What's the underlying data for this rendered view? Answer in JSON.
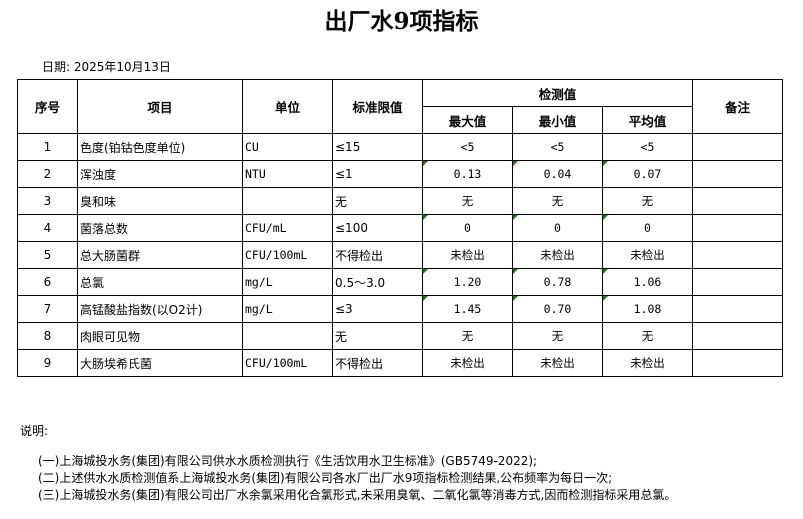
{
  "title": "出厂水9项指标",
  "date_label": "日期: 2025年10月13日",
  "headers": {
    "seq": "序号",
    "item": "项目",
    "unit": "单位",
    "limit": "标准限值",
    "measured": "检测值",
    "max": "最大值",
    "min": "最小值",
    "avg": "平均值",
    "remark": "备注"
  },
  "rows": [
    {
      "seq": "1",
      "item": "色度(铂钴色度单位)",
      "unit": "CU",
      "limit": "≤15",
      "max": "<5",
      "min": "<5",
      "avg": "<5",
      "remark": "",
      "flag": false
    },
    {
      "seq": "2",
      "item": "浑浊度",
      "unit": "NTU",
      "limit": "≤1",
      "max": "0.13",
      "min": "0.04",
      "avg": "0.07",
      "remark": "",
      "flag": true
    },
    {
      "seq": "3",
      "item": "臭和味",
      "unit": "",
      "limit": "无",
      "max": "无",
      "min": "无",
      "avg": "无",
      "remark": "",
      "flag": false
    },
    {
      "seq": "4",
      "item": "菌落总数",
      "unit": "CFU/mL",
      "limit": "≤100",
      "max": "0",
      "min": "0",
      "avg": "0",
      "remark": "",
      "flag": true
    },
    {
      "seq": "5",
      "item": "总大肠菌群",
      "unit": "CFU/100mL",
      "limit": "不得检出",
      "max": "未检出",
      "min": "未检出",
      "avg": "未检出",
      "remark": "",
      "flag": false
    },
    {
      "seq": "6",
      "item": "总氯",
      "unit": "mg/L",
      "limit": "0.5～3.0",
      "max": "1.20",
      "min": "0.78",
      "avg": "1.06",
      "remark": "",
      "flag": true
    },
    {
      "seq": "7",
      "item": "高锰酸盐指数(以O2计)",
      "unit": "mg/L",
      "limit": "≤3",
      "max": "1.45",
      "min": "0.70",
      "avg": "1.08",
      "remark": "",
      "flag": true
    },
    {
      "seq": "8",
      "item": "肉眼可见物",
      "unit": "",
      "limit": "无",
      "max": "无",
      "min": "无",
      "avg": "无",
      "remark": "",
      "flag": false
    },
    {
      "seq": "9",
      "item": "大肠埃希氏菌",
      "unit": "CFU/100mL",
      "limit": "不得检出",
      "max": "未检出",
      "min": "未检出",
      "avg": "未检出",
      "remark": "",
      "flag": false
    }
  ],
  "notes_label": "说明:",
  "notes": [
    "(一)上海城投水务(集团)有限公司供水水质检测执行《生活饮用水卫生标准》(GB5749-2022);",
    "(二)上述供水水质检测值系上海城投水务(集团)有限公司各水厂出厂水9项指标检测结果,公布频率为每日一次;",
    "(三)上海城投水务(集团)有限公司出厂水余氯采用化合氯形式,未采用臭氧、二氧化氯等消毒方式,因而检测指标采用总氯。"
  ],
  "colors": {
    "flag": "#1a7a1a"
  }
}
